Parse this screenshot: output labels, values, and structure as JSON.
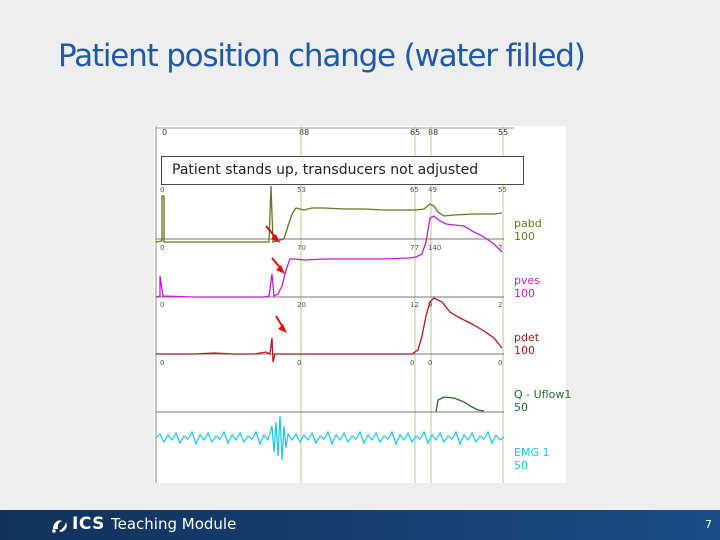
{
  "slide": {
    "title": "Patient position change (water filled)",
    "callout": "Patient stands up, transducers not adjusted",
    "page_number": "7"
  },
  "footer": {
    "logo_text": "ICS",
    "label": "Teaching Module"
  },
  "colors": {
    "title": "#1f5aa6",
    "footer": "#17406f",
    "pabd": "#5f7a1e",
    "pves": "#c020d0",
    "pdet": "#b01818",
    "flow": "#1e6e28",
    "emg": "#18c8e8",
    "arrow": "#e01010"
  },
  "trace": {
    "top_axis_labels": [
      "0",
      "88",
      "65",
      "88",
      "55"
    ],
    "rows": [
      {
        "values": [
          "0",
          "53",
          "65",
          "49",
          "55"
        ]
      },
      {
        "values": [
          "0",
          "70",
          "77",
          "140",
          "7"
        ]
      },
      {
        "values": [
          "0",
          "20",
          "12",
          "9",
          "2"
        ]
      },
      {
        "values": [
          "0",
          "0",
          "0",
          "0",
          "0"
        ]
      }
    ],
    "channels": [
      {
        "name": "pabd",
        "scale": "100"
      },
      {
        "name": "pves",
        "scale": "100"
      },
      {
        "name": "pdet",
        "scale": "100"
      },
      {
        "name": "Q - Uflow1",
        "scale": "50"
      },
      {
        "name": "EMG 1",
        "scale": "50"
      }
    ]
  }
}
